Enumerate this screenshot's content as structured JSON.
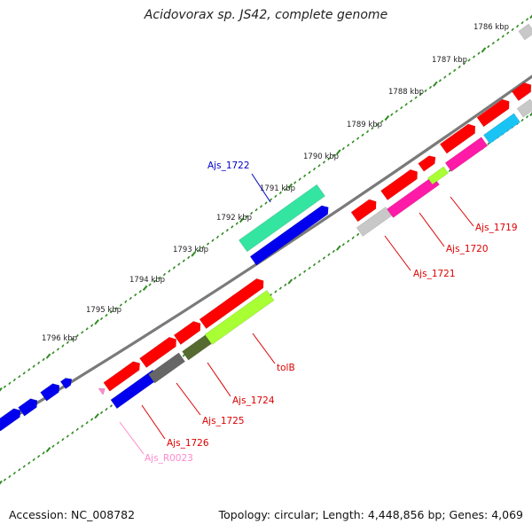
{
  "title": "Acidovorax sp. JS42, complete genome",
  "footer": {
    "accession": "Accession: NC_008782",
    "summary": "Topology: circular; Length: 4,448,856 bp; Genes: 4,069"
  },
  "colors": {
    "backbone": "#7a7a7a",
    "ruler": "#2e8b1f",
    "red_gene": "#ff0000",
    "blue_gene": "#0000ee",
    "teal_cog": "#33e5a0",
    "magenta_cog": "#ff1aa8",
    "lime_cog": "#a8ff33",
    "olive_cog": "#556b2f",
    "darkgray_cog": "#666666",
    "lightgray_cog": "#c8c8c8",
    "cyan_cog": "#19c4f5",
    "rna_pink": "#ff88cc",
    "label_red": "#dd0000",
    "label_blue": "#0000cc",
    "label_pink": "#ff88cc"
  },
  "ruler_ticks": [
    {
      "label": "1786 kbp"
    },
    {
      "label": "1787 kbp"
    },
    {
      "label": "1788 kbp"
    },
    {
      "label": "1789 kbp"
    },
    {
      "label": "1790 kbp"
    },
    {
      "label": "1791 kbp"
    },
    {
      "label": "1792 kbp"
    },
    {
      "label": "1793 kbp"
    },
    {
      "label": "1794 kbp"
    },
    {
      "label": "1795 kbp"
    },
    {
      "label": "1796 kbp"
    }
  ],
  "gene_labels": [
    {
      "name": "Ajs_1722",
      "color": "blue"
    },
    {
      "name": "Ajs_1719",
      "color": "red"
    },
    {
      "name": "Ajs_1720",
      "color": "red"
    },
    {
      "name": "Ajs_1721",
      "color": "red"
    },
    {
      "name": "tolB",
      "color": "red"
    },
    {
      "name": "Ajs_1724",
      "color": "red"
    },
    {
      "name": "Ajs_1725",
      "color": "red"
    },
    {
      "name": "Ajs_1726",
      "color": "red"
    },
    {
      "name": "Ajs_R0023",
      "color": "pink"
    }
  ]
}
